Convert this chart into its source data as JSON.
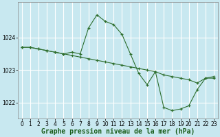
{
  "background_color": "#c8e8f0",
  "grid_color": "#ffffff",
  "line_color": "#2d6e2d",
  "series1_x": [
    0,
    1,
    2,
    3,
    4,
    5,
    6,
    7,
    8,
    9,
    10,
    11,
    12,
    13,
    14,
    15,
    16,
    17,
    18,
    19,
    20,
    21,
    22,
    23
  ],
  "series1_y": [
    1023.7,
    1023.7,
    1023.65,
    1023.6,
    1023.55,
    1023.5,
    1023.45,
    1023.4,
    1023.35,
    1023.3,
    1023.25,
    1023.2,
    1023.15,
    1023.1,
    1023.05,
    1023.0,
    1022.95,
    1022.85,
    1022.8,
    1022.75,
    1022.7,
    1022.6,
    1022.75,
    1022.8
  ],
  "series2_x": [
    0,
    1,
    2,
    3,
    4,
    5,
    6,
    7,
    8,
    9,
    10,
    11,
    12,
    13,
    14,
    15,
    16,
    17,
    18,
    19,
    20,
    21,
    22,
    23
  ],
  "series2_y": [
    1023.7,
    1023.7,
    1023.65,
    1023.6,
    1023.55,
    1023.5,
    1023.55,
    1023.5,
    1024.3,
    1024.7,
    1024.5,
    1024.4,
    1024.1,
    1023.5,
    1022.9,
    1022.55,
    1022.95,
    1021.85,
    1021.75,
    1021.8,
    1021.9,
    1022.4,
    1022.75,
    1022.75
  ],
  "ylim": [
    1021.5,
    1025.1
  ],
  "yticks": [
    1022,
    1023,
    1024
  ],
  "xticks": [
    0,
    1,
    2,
    3,
    4,
    5,
    6,
    7,
    8,
    9,
    10,
    11,
    12,
    13,
    14,
    15,
    16,
    17,
    18,
    19,
    20,
    21,
    22,
    23
  ],
  "xlabel": "Graphe pression niveau de la mer (hPa)",
  "xlabel_fontsize": 7.0,
  "tick_fontsize": 5.5
}
